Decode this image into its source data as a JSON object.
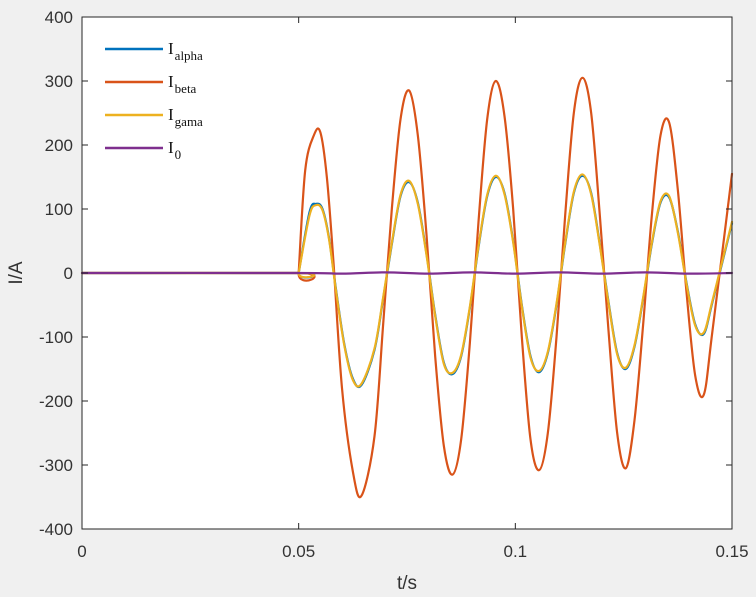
{
  "chart_data": {
    "type": "line",
    "title": "",
    "xlabel": "t/s",
    "ylabel": "I/A",
    "xlim": [
      0,
      0.15
    ],
    "ylim": [
      -400,
      400
    ],
    "xticks": [
      0,
      0.05,
      0.1,
      0.15
    ],
    "xtick_labels": [
      "0",
      "0.05",
      "0.1",
      "0.15"
    ],
    "yticks": [
      -400,
      -300,
      -200,
      -100,
      0,
      100,
      200,
      300,
      400
    ],
    "ytick_labels": [
      "-400",
      "-300",
      "-200",
      "-100",
      "0",
      "100",
      "200",
      "300",
      "400"
    ],
    "grid": false,
    "legend_position": "top-left",
    "series": [
      {
        "name": "I_alpha",
        "label_main": "I",
        "label_sub": "alpha",
        "color": "#0072bd",
        "x": [
          0,
          0.05,
          0.05,
          0.0525,
          0.054,
          0.0555,
          0.057,
          0.0585,
          0.0605,
          0.0625,
          0.0645,
          0.0675,
          0.0695,
          0.0715,
          0.0735,
          0.0755,
          0.0775,
          0.0795,
          0.0815,
          0.0835,
          0.0855,
          0.0875,
          0.0895,
          0.0915,
          0.0935,
          0.0955,
          0.0975,
          0.0995,
          0.1015,
          0.1035,
          0.1055,
          0.1075,
          0.1095,
          0.1115,
          0.1135,
          0.1155,
          0.1175,
          0.1195,
          0.1215,
          0.1235,
          0.1255,
          0.1275,
          0.1295,
          0.1315,
          0.1335,
          0.1355,
          0.1375,
          0.1395,
          0.1415,
          0.1435,
          0.1455,
          0.15
        ],
        "y": [
          0,
          0,
          0,
          95,
          108,
          100,
          55,
          -20,
          -110,
          -165,
          -175,
          -120,
          -40,
          45,
          120,
          142,
          110,
          30,
          -65,
          -140,
          -158,
          -130,
          -55,
          40,
          120,
          150,
          125,
          50,
          -50,
          -130,
          -155,
          -125,
          -50,
          45,
          125,
          152,
          125,
          45,
          -45,
          -125,
          -150,
          -115,
          -40,
          45,
          110,
          118,
          65,
          -15,
          -80,
          -95,
          -45,
          78
        ]
      },
      {
        "name": "I_beta",
        "label_main": "I",
        "label_sub": "beta",
        "color": "#d95319",
        "x": [
          0,
          0.05,
          0.05,
          0.0515,
          0.0535,
          0.055,
          0.0565,
          0.058,
          0.06,
          0.0625,
          0.0645,
          0.0675,
          0.0695,
          0.0715,
          0.0735,
          0.0755,
          0.0775,
          0.0795,
          0.0815,
          0.0835,
          0.0855,
          0.0875,
          0.0895,
          0.0915,
          0.0935,
          0.0955,
          0.0975,
          0.0995,
          0.1015,
          0.1035,
          0.1055,
          0.1075,
          0.1095,
          0.1115,
          0.1135,
          0.1155,
          0.1175,
          0.1195,
          0.1215,
          0.1235,
          0.1255,
          0.1275,
          0.1295,
          0.1315,
          0.1335,
          0.1355,
          0.1375,
          0.1395,
          0.1415,
          0.1435,
          0.1455,
          0.15
        ],
        "y": [
          0,
          0,
          0,
          160,
          215,
          220,
          150,
          20,
          -180,
          -310,
          -348,
          -255,
          -80,
          100,
          240,
          285,
          215,
          60,
          -130,
          -270,
          -315,
          -260,
          -110,
          80,
          240,
          300,
          245,
          100,
          -100,
          -260,
          -308,
          -250,
          -100,
          90,
          250,
          305,
          250,
          90,
          -90,
          -250,
          -305,
          -230,
          -80,
          90,
          215,
          235,
          130,
          -30,
          -160,
          -190,
          -90,
          155
        ]
      },
      {
        "name": "I_gama",
        "label_main": "I",
        "label_sub": "gama",
        "color": "#edb120",
        "x": [
          0,
          0.05,
          0.05,
          0.0525,
          0.054,
          0.0555,
          0.057,
          0.0585,
          0.0605,
          0.0625,
          0.0645,
          0.0675,
          0.0695,
          0.0715,
          0.0735,
          0.0755,
          0.0775,
          0.0795,
          0.0815,
          0.0835,
          0.0855,
          0.0875,
          0.0895,
          0.0915,
          0.0935,
          0.0955,
          0.0975,
          0.0995,
          0.1015,
          0.1035,
          0.1055,
          0.1075,
          0.1095,
          0.1115,
          0.1135,
          0.1155,
          0.1175,
          0.1195,
          0.1215,
          0.1235,
          0.1255,
          0.1275,
          0.1295,
          0.1315,
          0.1335,
          0.1355,
          0.1375,
          0.1395,
          0.1415,
          0.1435,
          0.1455,
          0.15
        ],
        "y": [
          0,
          0,
          0,
          90,
          106,
          98,
          53,
          -22,
          -112,
          -167,
          -173,
          -118,
          -38,
          47,
          122,
          144,
          108,
          28,
          -67,
          -142,
          -156,
          -128,
          -53,
          42,
          122,
          152,
          123,
          48,
          -52,
          -132,
          -153,
          -123,
          -48,
          47,
          127,
          154,
          123,
          43,
          -47,
          -127,
          -148,
          -113,
          -38,
          47,
          112,
          120,
          63,
          -17,
          -82,
          -93,
          -43,
          80
        ]
      },
      {
        "name": "I_0",
        "label_main": "I",
        "label_sub": "0",
        "color": "#7e2f8e",
        "x": [
          0,
          0.05,
          0.06,
          0.07,
          0.08,
          0.09,
          0.1,
          0.11,
          0.12,
          0.13,
          0.14,
          0.15
        ],
        "y": [
          0,
          0,
          -1,
          1,
          -1,
          1,
          -1,
          1,
          -1,
          1,
          -1,
          0
        ]
      }
    ]
  }
}
